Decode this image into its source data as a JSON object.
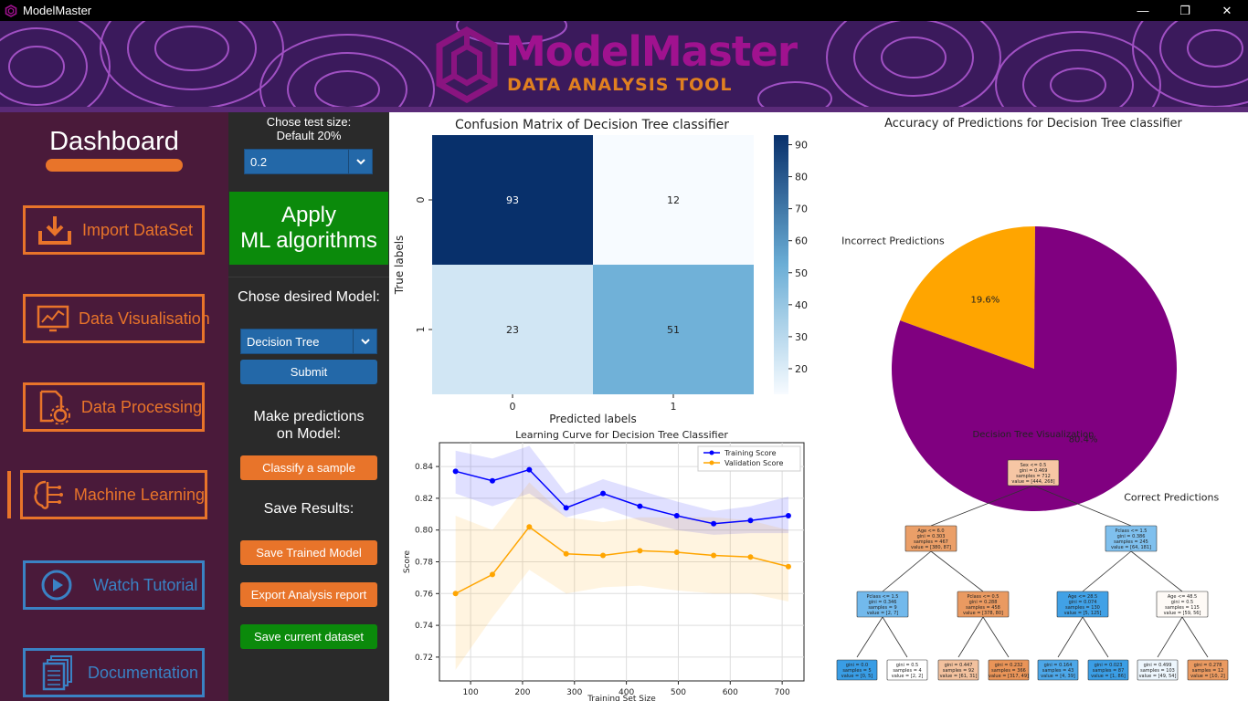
{
  "window": {
    "title": "ModelMaster",
    "minimize": "—",
    "maximize": "❐",
    "close": "✕"
  },
  "banner": {
    "title": "ModelMaster",
    "subtitle": "DATA ANALYSIS TOOL"
  },
  "colors": {
    "accent_orange": "#e8742a",
    "accent_blue": "#3a82c4",
    "green": "#0b8a0b",
    "sidebar_bg": "#4a1a3a",
    "banner_purple": "#a0128f"
  },
  "sidebar": {
    "title": "Dashboard",
    "items": [
      {
        "label": "Import DataSet",
        "icon": "import-icon"
      },
      {
        "label": "Data Visualisation",
        "icon": "chart-monitor-icon"
      },
      {
        "label": "Data Processing",
        "icon": "document-gear-icon"
      },
      {
        "label": "Machine Learning",
        "icon": "brain-circuit-icon",
        "active": true
      },
      {
        "label": "Watch Tutorial",
        "icon": "play-icon"
      },
      {
        "label": "Documentation",
        "icon": "documents-icon"
      }
    ]
  },
  "panel": {
    "test_size_label_1": "Chose test size:",
    "test_size_label_2": "Default 20%",
    "test_size_value": "0.2",
    "apply_line1": "Apply",
    "apply_line2": "ML algorithms",
    "model_label": "Chose desired Model:",
    "model_value": "Decision Tree",
    "submit": "Submit",
    "predict_label_1": "Make predictions",
    "predict_label_2": "on Model:",
    "classify": "Classify a sample",
    "save_label": "Save Results:",
    "save_model": "Save Trained Model",
    "export_report": "Export Analysis report",
    "save_dataset": "Save current dataset"
  },
  "chart_data": [
    {
      "type": "heatmap",
      "title": "Confusion Matrix of Decision Tree classifier",
      "xlabel": "Predicted labels",
      "ylabel": "True labels",
      "x_categories": [
        "0",
        "1"
      ],
      "y_categories": [
        "0",
        "1"
      ],
      "values": [
        [
          93,
          12
        ],
        [
          23,
          51
        ]
      ],
      "colorbar_ticks": [
        20,
        30,
        40,
        50,
        60,
        70,
        80,
        90
      ],
      "colorbar_range": [
        12,
        93
      ]
    },
    {
      "type": "pie",
      "title": "Accuracy of Predictions for Decision Tree classifier",
      "labels": [
        "Incorrect Predictions",
        "Correct Predictions"
      ],
      "values": [
        19.6,
        80.4
      ],
      "value_labels": [
        "19.6%",
        "80.4%"
      ],
      "colors": [
        "#ffa500",
        "#800080"
      ]
    },
    {
      "type": "line",
      "title": "Learning Curve for Decision Tree Classifier",
      "xlabel": "Training Set Size",
      "ylabel": "Score",
      "x": [
        71,
        142,
        213,
        284,
        355,
        426,
        497,
        568,
        639,
        712
      ],
      "series": [
        {
          "name": "Training Score",
          "color": "#0000ff",
          "values": [
            0.837,
            0.831,
            0.838,
            0.814,
            0.823,
            0.815,
            0.809,
            0.804,
            0.806,
            0.809
          ],
          "band_low": [
            0.823,
            0.815,
            0.823,
            0.808,
            0.814,
            0.806,
            0.8,
            0.797,
            0.798,
            0.798
          ],
          "band_high": [
            0.85,
            0.845,
            0.853,
            0.823,
            0.832,
            0.825,
            0.818,
            0.812,
            0.815,
            0.821
          ]
        },
        {
          "name": "Validation Score",
          "color": "#ffa500",
          "values": [
            0.76,
            0.772,
            0.802,
            0.785,
            0.784,
            0.787,
            0.786,
            0.784,
            0.783,
            0.777
          ],
          "band_low": [
            0.712,
            0.745,
            0.775,
            0.76,
            0.764,
            0.765,
            0.762,
            0.76,
            0.76,
            0.755
          ],
          "band_high": [
            0.809,
            0.8,
            0.83,
            0.808,
            0.805,
            0.808,
            0.808,
            0.808,
            0.806,
            0.8
          ]
        }
      ],
      "xticks": [
        100,
        200,
        300,
        400,
        500,
        600,
        700
      ],
      "yticks": [
        0.72,
        0.74,
        0.76,
        0.78,
        0.8,
        0.82,
        0.84
      ],
      "xlim": [
        40,
        742
      ],
      "ylim": [
        0.705,
        0.855
      ],
      "grid": true,
      "legend": "top-right"
    },
    {
      "type": "table",
      "title": "Decision Tree Visualization",
      "nodes": [
        {
          "id": "n0",
          "lines": [
            "Sex <= 0.5",
            "gini = 0.469",
            "samples = 712",
            "value = [444, 268]"
          ],
          "color": "#f6c6a4"
        },
        {
          "id": "n1",
          "lines": [
            "Age <= 6.0",
            "gini = 0.303",
            "samples = 467",
            "value = [380, 87]"
          ],
          "color": "#eb9f68"
        },
        {
          "id": "n2",
          "lines": [
            "Pclass <= 1.5",
            "gini = 0.386",
            "samples = 245",
            "value = [64, 181]"
          ],
          "color": "#7fc0ee"
        },
        {
          "id": "n3",
          "lines": [
            "Pclass <= 1.5",
            "gini = 0.346",
            "samples = 9",
            "value = [2, 7]"
          ],
          "color": "#72b9ec"
        },
        {
          "id": "n4",
          "lines": [
            "Pclass <= 0.5",
            "gini = 0.288",
            "samples = 458",
            "value = [378, 80]"
          ],
          "color": "#ea9a61"
        },
        {
          "id": "n5",
          "lines": [
            "Age <= 28.5",
            "gini = 0.074",
            "samples = 130",
            "value = [5, 125]"
          ],
          "color": "#41a1e6"
        },
        {
          "id": "n6",
          "lines": [
            "Age <= 48.5",
            "gini = 0.5",
            "samples = 115",
            "value = [59, 56]"
          ],
          "color": "#fefaf6"
        },
        {
          "id": "n7",
          "lines": [
            "gini = 0.0",
            "samples = 5",
            "value = [0, 5]"
          ],
          "color": "#399de5"
        },
        {
          "id": "n8",
          "lines": [
            "gini = 0.5",
            "samples = 4",
            "value = [2, 2]"
          ],
          "color": "#ffffff"
        },
        {
          "id": "n9",
          "lines": [
            "gini = 0.447",
            "samples = 92",
            "value = [61, 31]"
          ],
          "color": "#f2c19e"
        },
        {
          "id": "n10",
          "lines": [
            "gini = 0.232",
            "samples = 366",
            "value = [317, 49]"
          ],
          "color": "#e99458"
        },
        {
          "id": "n11",
          "lines": [
            "gini = 0.164",
            "samples = 43",
            "value = [4, 39]"
          ],
          "color": "#4da7e8"
        },
        {
          "id": "n12",
          "lines": [
            "gini = 0.023",
            "samples = 87",
            "value = [1, 86]"
          ],
          "color": "#3b9ee5"
        },
        {
          "id": "n13",
          "lines": [
            "gini = 0.499",
            "samples = 103",
            "value = [49, 54]"
          ],
          "color": "#edf6fd"
        },
        {
          "id": "n14",
          "lines": [
            "gini = 0.278",
            "samples = 12",
            "value = [10, 2]"
          ],
          "color": "#ea9a61"
        }
      ],
      "edges": [
        [
          "n0",
          "n1"
        ],
        [
          "n0",
          "n2"
        ],
        [
          "n1",
          "n3"
        ],
        [
          "n1",
          "n4"
        ],
        [
          "n2",
          "n5"
        ],
        [
          "n2",
          "n6"
        ],
        [
          "n3",
          "n7"
        ],
        [
          "n3",
          "n8"
        ],
        [
          "n4",
          "n9"
        ],
        [
          "n4",
          "n10"
        ],
        [
          "n5",
          "n11"
        ],
        [
          "n5",
          "n12"
        ],
        [
          "n6",
          "n13"
        ],
        [
          "n6",
          "n14"
        ]
      ]
    }
  ]
}
